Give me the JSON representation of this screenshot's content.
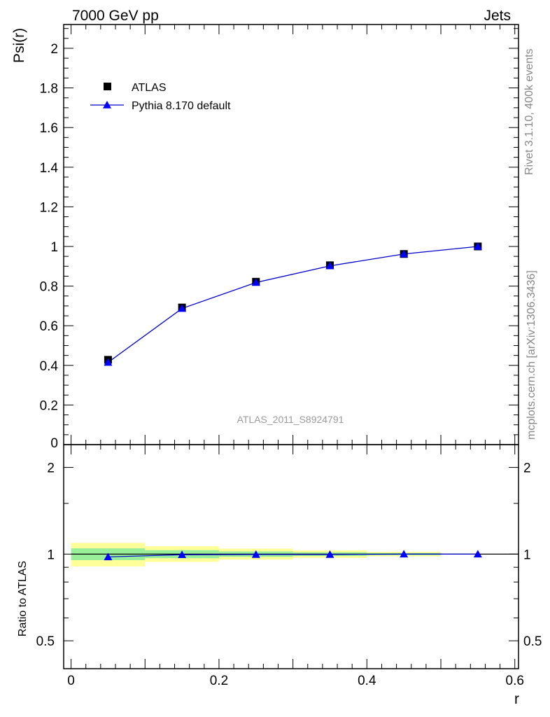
{
  "header": {
    "left_title": "7000 GeV pp",
    "right_title": "Jets"
  },
  "side_labels": {
    "rivet": "Rivet 3.1.10,  400k events",
    "mcplots": "mcplots.cern.ch [arXiv:1306.3436]"
  },
  "watermark": "ATLAS_2011_S8924791",
  "chart_data": [
    {
      "type": "scatter",
      "panel": "main",
      "ylabel": "Psi(r)",
      "xlim": [
        -0.01,
        0.605
      ],
      "ylim": [
        0.0,
        2.12
      ],
      "y_ticks": [
        0.2,
        0.4,
        0.6,
        0.8,
        1,
        1.2,
        1.4,
        1.6,
        1.8,
        2
      ],
      "y_tick_labels": [
        "0.2",
        "0.4",
        "0.6",
        "0.8",
        "1",
        "1.2",
        "1.4",
        "1.6",
        "1.8",
        "2"
      ],
      "y_clipped_label": "0",
      "legend_position": "top-left",
      "series": [
        {
          "name": "ATLAS",
          "marker": "square",
          "color": "#000000",
          "x": [
            0.05,
            0.15,
            0.25,
            0.35,
            0.45,
            0.55
          ],
          "y": [
            0.428,
            0.692,
            0.822,
            0.905,
            0.962,
            1.0
          ]
        },
        {
          "name": "Pythia 8.170 default",
          "marker": "triangle",
          "color": "#0000ff",
          "line_color": "#0000cc",
          "x": [
            0.05,
            0.15,
            0.25,
            0.35,
            0.45,
            0.55
          ],
          "y": [
            0.415,
            0.687,
            0.818,
            0.902,
            0.962,
            1.0
          ]
        }
      ]
    },
    {
      "type": "scatter",
      "panel": "ratio",
      "ylabel": "Ratio to ATLAS",
      "xlabel": "r",
      "log_y": true,
      "xlim": [
        -0.01,
        0.605
      ],
      "ylim": [
        0.4,
        2.4
      ],
      "x_ticks": [
        0,
        0.2,
        0.4,
        0.6
      ],
      "x_tick_labels": [
        "0",
        "0.2",
        "0.4",
        "0.6"
      ],
      "y_ticks": [
        0.5,
        1,
        2
      ],
      "y_tick_labels": [
        "0.5",
        "1",
        "2"
      ],
      "bands": {
        "yellow_color": "#ffff99",
        "green_color": "#99ee99",
        "bins": [
          {
            "x0": 0.0,
            "x1": 0.1,
            "yellow": [
              0.906,
              1.094
            ],
            "green": [
              0.953,
              1.047
            ]
          },
          {
            "x0": 0.1,
            "x1": 0.2,
            "yellow": [
              0.94,
              1.065
            ],
            "green": [
              0.968,
              1.032
            ]
          },
          {
            "x0": 0.2,
            "x1": 0.3,
            "yellow": [
              0.957,
              1.045
            ],
            "green": [
              0.978,
              1.022
            ]
          },
          {
            "x0": 0.3,
            "x1": 0.4,
            "yellow": [
              0.97,
              1.03
            ],
            "green": [
              0.985,
              1.015
            ]
          },
          {
            "x0": 0.4,
            "x1": 0.5,
            "yellow": [
              0.982,
              1.018
            ],
            "green": [
              0.991,
              1.009
            ]
          }
        ]
      },
      "series": [
        {
          "name": "Pythia 8.170 default",
          "marker": "triangle",
          "color": "#0000ff",
          "x": [
            0.05,
            0.15,
            0.25,
            0.35,
            0.45,
            0.55
          ],
          "y": [
            0.978,
            0.995,
            0.997,
            0.997,
            1.0,
            1.0
          ]
        }
      ]
    }
  ]
}
